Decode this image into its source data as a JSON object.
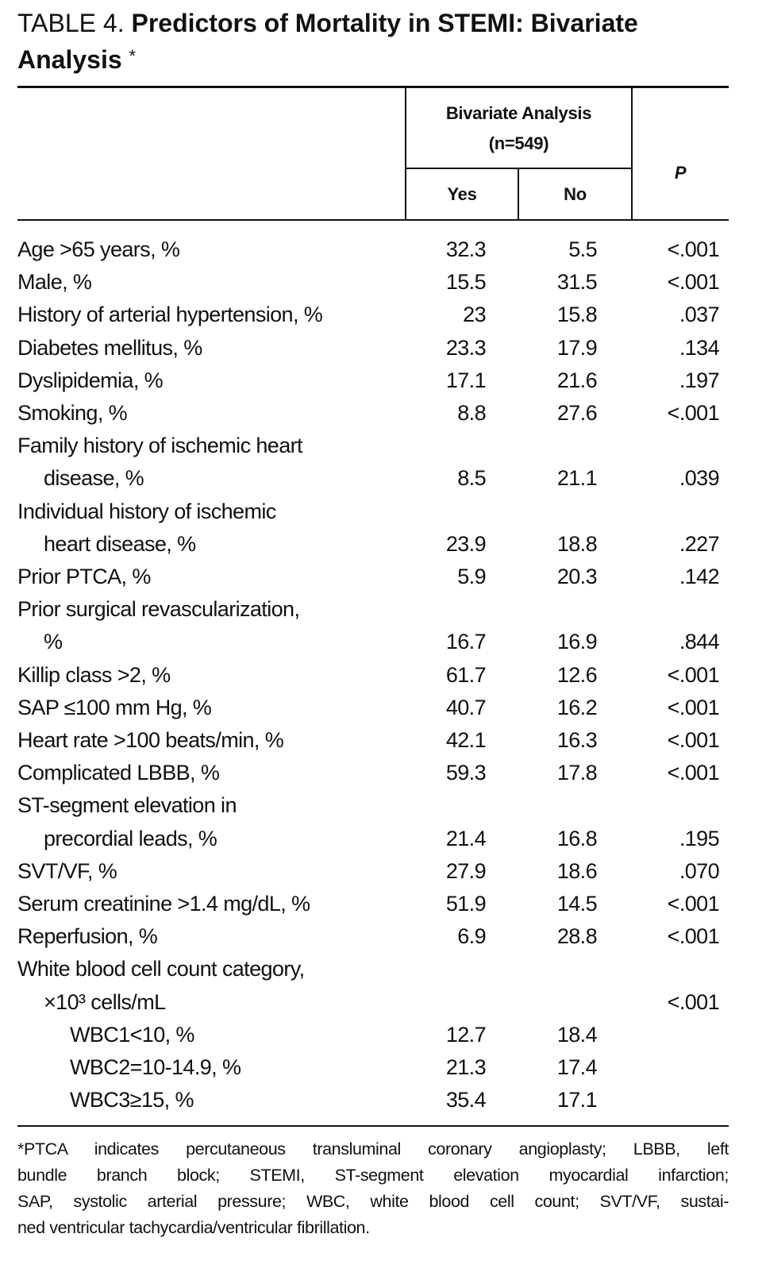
{
  "title": {
    "label": "TABLE 4.",
    "text": "Predictors of Mortality in STEMI: Bivariate Analysis",
    "mark": "*"
  },
  "table": {
    "header": {
      "group": [
        "Bivariate Analysis",
        "(n=549)"
      ],
      "yes": "Yes",
      "no": "No",
      "p": "P"
    },
    "rows": [
      {
        "label": [
          "Age >65 years, %"
        ],
        "yes": "32.3",
        "no": "5.5",
        "p": "<.001"
      },
      {
        "label": [
          "Male, %"
        ],
        "yes": "15.5",
        "no": "31.5",
        "p": "<.001"
      },
      {
        "label": [
          "History of arterial hypertension, %"
        ],
        "yes": "23",
        "no": "15.8",
        "p": ".037"
      },
      {
        "label": [
          "Diabetes mellitus, %"
        ],
        "yes": "23.3",
        "no": "17.9",
        "p": ".134"
      },
      {
        "label": [
          "Dyslipidemia, %"
        ],
        "yes": "17.1",
        "no": "21.6",
        "p": ".197"
      },
      {
        "label": [
          "Smoking, %"
        ],
        "yes": "8.8",
        "no": "27.6",
        "p": "<.001"
      },
      {
        "label": [
          "Family history of ischemic heart",
          "disease, %"
        ],
        "yes": "8.5",
        "no": "21.1",
        "p": ".039"
      },
      {
        "label": [
          "Individual history of ischemic",
          "heart disease, %"
        ],
        "yes": "23.9",
        "no": "18.8",
        "p": ".227"
      },
      {
        "label": [
          "Prior PTCA, %"
        ],
        "yes": "5.9",
        "no": "20.3",
        "p": ".142"
      },
      {
        "label": [
          "Prior surgical revascularization,",
          "%"
        ],
        "yes": "16.7",
        "no": "16.9",
        "p": ".844"
      },
      {
        "label": [
          "Killip class >2, %"
        ],
        "yes": "61.7",
        "no": "12.6",
        "p": "<.001"
      },
      {
        "label": [
          "SAP ≤100 mm Hg, %"
        ],
        "yes": "40.7",
        "no": "16.2",
        "p": "<.001"
      },
      {
        "label": [
          "Heart rate >100 beats/min, %"
        ],
        "yes": "42.1",
        "no": "16.3",
        "p": "<.001"
      },
      {
        "label": [
          "Complicated LBBB, %"
        ],
        "yes": "59.3",
        "no": "17.8",
        "p": "<.001"
      },
      {
        "label": [
          "ST-segment elevation in",
          "precordial leads, %"
        ],
        "yes": "21.4",
        "no": "16.8",
        "p": ".195"
      },
      {
        "label": [
          "SVT/VF, %"
        ],
        "yes": "27.9",
        "no": "18.6",
        "p": ".070"
      },
      {
        "label": [
          "Serum creatinine >1.4 mg/dL, %"
        ],
        "yes": "51.9",
        "no": "14.5",
        "p": "<.001"
      },
      {
        "label": [
          "Reperfusion, %"
        ],
        "yes": "6.9",
        "no": "28.8",
        "p": "<.001"
      },
      {
        "label": [
          "White blood cell count category,",
          "×10³ cells/mL"
        ],
        "p": "<.001",
        "subrows": [
          {
            "label": "WBC1<10, %",
            "yes": "12.7",
            "no": "18.4"
          },
          {
            "label": "WBC2=10-14.9, %",
            "yes": "21.3",
            "no": "17.4"
          },
          {
            "label": "WBC3≥15, %",
            "yes": "35.4",
            "no": "17.1"
          }
        ]
      }
    ]
  },
  "footnote": [
    "*PTCA indicates percutaneous transluminal coronary angioplasty; LBBB, left",
    "bundle branch block; STEMI, ST-segment elevation myocardial infarction;",
    "SAP, systolic arterial pressure; WBC, white blood cell count; SVT/VF, sustai-",
    "ned ventricular tachycardia/ventricular fibrillation."
  ]
}
